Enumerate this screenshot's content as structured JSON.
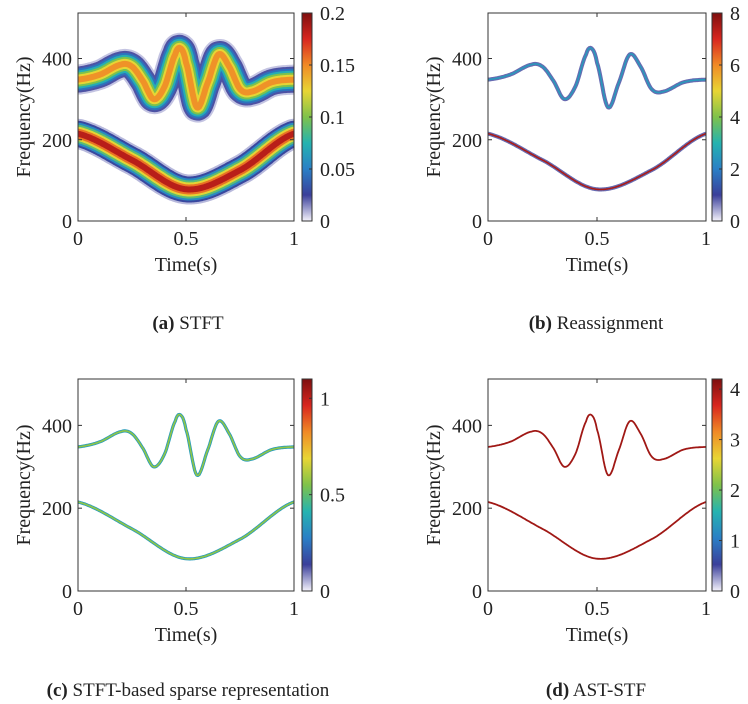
{
  "chart_data": [
    {
      "type": "heatmap",
      "method": "STFT",
      "caption_tag": "(a)",
      "caption_text": "STFT",
      "xlabel": "Time(s)",
      "ylabel": "Frequency(Hz)",
      "xlim": [
        0,
        1
      ],
      "ylim": [
        0,
        512
      ],
      "xticks": [
        0,
        0.5,
        1
      ],
      "xtick_labels": [
        "0",
        "0.5",
        "1"
      ],
      "yticks": [
        0,
        200,
        400
      ],
      "ytick_labels": [
        "0",
        "200",
        "400"
      ],
      "colorbar": {
        "min": 0,
        "max": 0.2,
        "ticks": [
          0,
          0.05,
          0.1,
          0.15,
          0.2
        ],
        "tick_labels": [
          "0",
          "0.05",
          "0.1",
          "0.15",
          "0.2"
        ]
      },
      "ridges": [
        {
          "name": "upper",
          "peak": 0.16,
          "times": [
            0,
            0.1,
            0.2,
            0.25,
            0.3,
            0.35,
            0.4,
            0.45,
            0.475,
            0.5,
            0.55,
            0.6,
            0.65,
            0.7,
            0.75,
            0.8,
            0.9,
            1.0
          ],
          "freqs": [
            348,
            360,
            385,
            380,
            345,
            300,
            330,
            410,
            425,
            390,
            280,
            340,
            410,
            380,
            325,
            318,
            342,
            348
          ]
        },
        {
          "name": "lower",
          "peak": 0.2,
          "times": [
            0,
            0.25,
            0.5,
            0.75,
            1.0
          ],
          "freqs": [
            215,
            150,
            78,
            125,
            215
          ]
        }
      ]
    },
    {
      "type": "heatmap",
      "method": "Reassignment",
      "caption_tag": "(b)",
      "caption_text": "Reassignment",
      "xlabel": "Time(s)",
      "ylabel": "Frequency(Hz)",
      "xlim": [
        0,
        1
      ],
      "ylim": [
        0,
        512
      ],
      "xticks": [
        0,
        0.5,
        1
      ],
      "xtick_labels": [
        "0",
        "0.5",
        "1"
      ],
      "yticks": [
        0,
        200,
        400
      ],
      "ytick_labels": [
        "0",
        "200",
        "400"
      ],
      "colorbar": {
        "min": 0,
        "max": 8,
        "ticks": [
          0,
          2,
          4,
          6,
          8
        ],
        "tick_labels": [
          "0",
          "2",
          "4",
          "6",
          "8"
        ]
      },
      "ridges": [
        {
          "name": "upper",
          "peak": 2.5,
          "times": [
            0,
            0.1,
            0.2,
            0.25,
            0.3,
            0.35,
            0.4,
            0.45,
            0.475,
            0.5,
            0.55,
            0.6,
            0.65,
            0.7,
            0.75,
            0.8,
            0.9,
            1.0
          ],
          "freqs": [
            348,
            360,
            385,
            380,
            345,
            300,
            330,
            410,
            425,
            390,
            280,
            340,
            410,
            380,
            325,
            318,
            342,
            348
          ]
        },
        {
          "name": "lower",
          "peak": 7.5,
          "times": [
            0,
            0.25,
            0.5,
            0.75,
            1.0
          ],
          "freqs": [
            215,
            150,
            78,
            125,
            215
          ]
        }
      ]
    },
    {
      "type": "heatmap",
      "method": "STFT-based sparse representation",
      "caption_tag": "(c)",
      "caption_text": "STFT-based sparse representation",
      "xlabel": "Time(s)",
      "ylabel": "Frequency(Hz)",
      "xlim": [
        0,
        1
      ],
      "ylim": [
        0,
        512
      ],
      "xticks": [
        0,
        0.5,
        1
      ],
      "xtick_labels": [
        "0",
        "0.5",
        "1"
      ],
      "yticks": [
        0,
        200,
        400
      ],
      "ytick_labels": [
        "0",
        "200",
        "400"
      ],
      "colorbar": {
        "min": 0,
        "max": 1.1,
        "ticks": [
          0,
          0.5,
          1
        ],
        "tick_labels": [
          "0",
          "0.5",
          "1"
        ]
      },
      "ridges": [
        {
          "name": "upper",
          "peak": 0.45,
          "times": [
            0,
            0.1,
            0.2,
            0.25,
            0.3,
            0.35,
            0.4,
            0.45,
            0.475,
            0.5,
            0.55,
            0.6,
            0.65,
            0.7,
            0.75,
            0.8,
            0.9,
            1.0
          ],
          "freqs": [
            348,
            360,
            385,
            380,
            345,
            300,
            330,
            410,
            425,
            390,
            280,
            340,
            410,
            380,
            325,
            318,
            342,
            348
          ]
        },
        {
          "name": "lower",
          "peak": 0.45,
          "times": [
            0,
            0.25,
            0.5,
            0.75,
            1.0
          ],
          "freqs": [
            215,
            150,
            78,
            125,
            215
          ]
        }
      ]
    },
    {
      "type": "heatmap",
      "method": "AST-STF",
      "caption_tag": "(d)",
      "caption_text": "AST-STF",
      "xlabel": "Time(s)",
      "ylabel": "Frequency(Hz)",
      "xlim": [
        0,
        1
      ],
      "ylim": [
        0,
        512
      ],
      "xticks": [
        0,
        0.5,
        1
      ],
      "xtick_labels": [
        "0",
        "0.5",
        "1"
      ],
      "yticks": [
        0,
        200,
        400
      ],
      "ytick_labels": [
        "0",
        "200",
        "400"
      ],
      "colorbar": {
        "min": 0,
        "max": 4.2,
        "ticks": [
          0,
          1,
          2,
          3,
          4
        ],
        "tick_labels": [
          "0",
          "1",
          "2",
          "3",
          "4"
        ]
      },
      "ridges": [
        {
          "name": "upper",
          "peak": 4.0,
          "times": [
            0,
            0.1,
            0.2,
            0.25,
            0.3,
            0.35,
            0.4,
            0.45,
            0.475,
            0.5,
            0.55,
            0.6,
            0.65,
            0.7,
            0.75,
            0.8,
            0.9,
            1.0
          ],
          "freqs": [
            348,
            360,
            385,
            380,
            345,
            300,
            330,
            410,
            425,
            390,
            280,
            340,
            410,
            380,
            325,
            318,
            342,
            348
          ]
        },
        {
          "name": "lower",
          "peak": 4.0,
          "times": [
            0,
            0.25,
            0.5,
            0.75,
            1.0
          ],
          "freqs": [
            215,
            150,
            78,
            125,
            215
          ]
        }
      ]
    }
  ],
  "colormap": [
    "#f4f2fb",
    "#3a3f9a",
    "#2a7fc6",
    "#25b3b0",
    "#7fc24a",
    "#e8d534",
    "#f08a26",
    "#d8261f",
    "#7e0f0f"
  ]
}
